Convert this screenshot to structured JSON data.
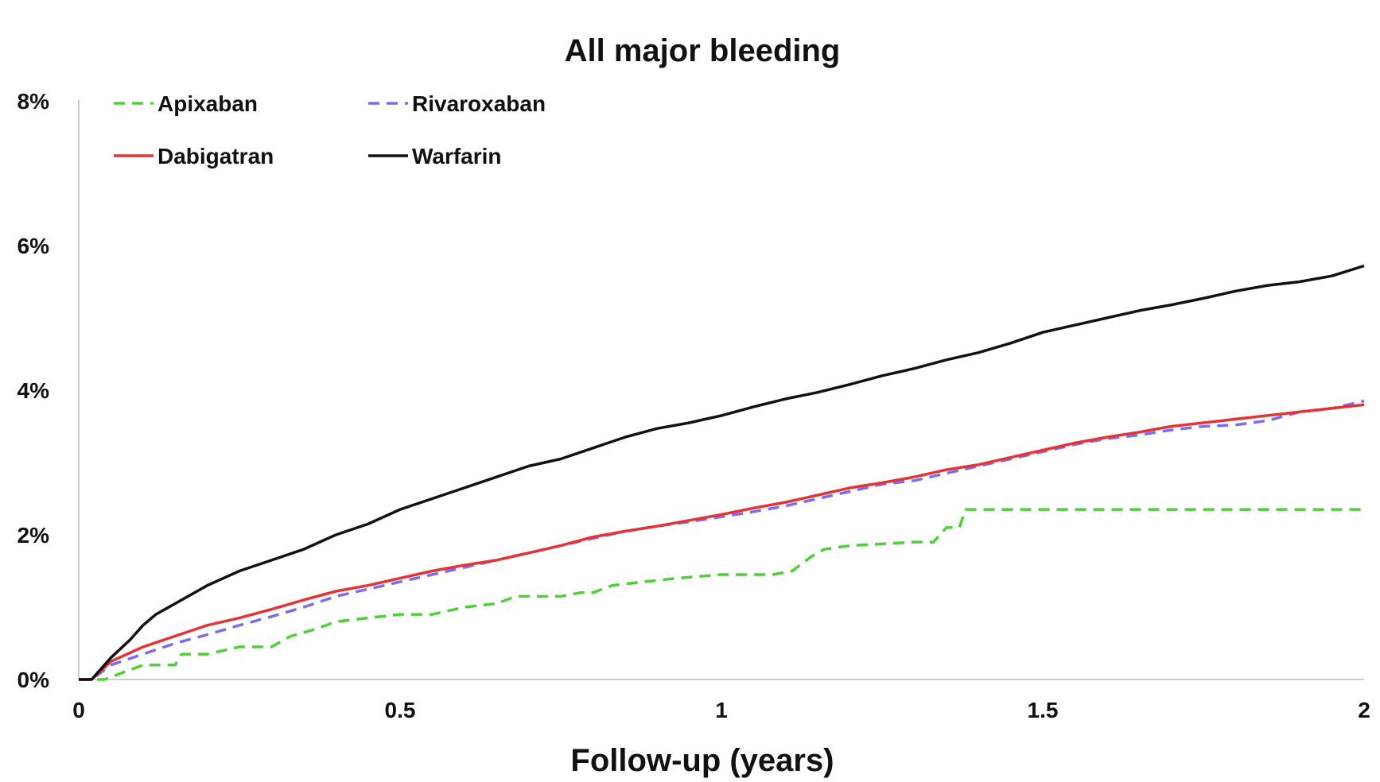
{
  "chart_data": {
    "type": "line",
    "title": "All major bleeding",
    "xlabel": "Follow-up (years)",
    "ylabel": "",
    "xlim": [
      0,
      2
    ],
    "ylim": [
      0,
      8
    ],
    "x_ticks": [
      {
        "value": 0,
        "label": "0"
      },
      {
        "value": 0.5,
        "label": "0.5"
      },
      {
        "value": 1,
        "label": "1"
      },
      {
        "value": 1.5,
        "label": "1.5"
      },
      {
        "value": 2,
        "label": "2"
      }
    ],
    "y_ticks": [
      {
        "value": 0,
        "label": "0%"
      },
      {
        "value": 2,
        "label": "2%"
      },
      {
        "value": 4,
        "label": "4%"
      },
      {
        "value": 6,
        "label": "6%"
      },
      {
        "value": 8,
        "label": "8%"
      }
    ],
    "grid": false,
    "legend_placement": "top-left",
    "series": [
      {
        "name": "Apixaban",
        "color": "#4cd137",
        "dash": "dashed",
        "points": [
          [
            0,
            0
          ],
          [
            0.04,
            0
          ],
          [
            0.07,
            0.1
          ],
          [
            0.1,
            0.2
          ],
          [
            0.15,
            0.2
          ],
          [
            0.16,
            0.35
          ],
          [
            0.2,
            0.35
          ],
          [
            0.25,
            0.45
          ],
          [
            0.3,
            0.45
          ],
          [
            0.33,
            0.6
          ],
          [
            0.37,
            0.7
          ],
          [
            0.4,
            0.8
          ],
          [
            0.45,
            0.85
          ],
          [
            0.5,
            0.9
          ],
          [
            0.55,
            0.9
          ],
          [
            0.6,
            1.0
          ],
          [
            0.65,
            1.05
          ],
          [
            0.68,
            1.15
          ],
          [
            0.75,
            1.15
          ],
          [
            0.78,
            1.2
          ],
          [
            0.8,
            1.2
          ],
          [
            0.83,
            1.3
          ],
          [
            0.88,
            1.35
          ],
          [
            0.93,
            1.4
          ],
          [
            1.0,
            1.45
          ],
          [
            1.08,
            1.45
          ],
          [
            1.11,
            1.5
          ],
          [
            1.14,
            1.7
          ],
          [
            1.16,
            1.8
          ],
          [
            1.2,
            1.85
          ],
          [
            1.3,
            1.9
          ],
          [
            1.33,
            1.9
          ],
          [
            1.35,
            2.1
          ],
          [
            1.37,
            2.1
          ],
          [
            1.38,
            2.35
          ],
          [
            2.0,
            2.35
          ]
        ]
      },
      {
        "name": "Rivaroxaban",
        "color": "#7b6cf0",
        "dash": "dashed",
        "points": [
          [
            0,
            0
          ],
          [
            0.02,
            0
          ],
          [
            0.05,
            0.2
          ],
          [
            0.1,
            0.35
          ],
          [
            0.15,
            0.5
          ],
          [
            0.2,
            0.62
          ],
          [
            0.25,
            0.75
          ],
          [
            0.3,
            0.87
          ],
          [
            0.35,
            1.0
          ],
          [
            0.4,
            1.15
          ],
          [
            0.45,
            1.25
          ],
          [
            0.5,
            1.35
          ],
          [
            0.55,
            1.45
          ],
          [
            0.6,
            1.55
          ],
          [
            0.65,
            1.65
          ],
          [
            0.7,
            1.75
          ],
          [
            0.75,
            1.85
          ],
          [
            0.8,
            1.95
          ],
          [
            0.85,
            2.05
          ],
          [
            0.9,
            2.12
          ],
          [
            0.95,
            2.18
          ],
          [
            1.0,
            2.25
          ],
          [
            1.05,
            2.32
          ],
          [
            1.1,
            2.4
          ],
          [
            1.15,
            2.5
          ],
          [
            1.2,
            2.6
          ],
          [
            1.25,
            2.7
          ],
          [
            1.3,
            2.75
          ],
          [
            1.35,
            2.85
          ],
          [
            1.4,
            2.95
          ],
          [
            1.45,
            3.05
          ],
          [
            1.5,
            3.15
          ],
          [
            1.55,
            3.25
          ],
          [
            1.6,
            3.33
          ],
          [
            1.65,
            3.38
          ],
          [
            1.7,
            3.45
          ],
          [
            1.75,
            3.5
          ],
          [
            1.8,
            3.52
          ],
          [
            1.85,
            3.58
          ],
          [
            1.9,
            3.7
          ],
          [
            1.95,
            3.75
          ],
          [
            2.0,
            3.85
          ]
        ]
      },
      {
        "name": "Dabigatran",
        "color": "#e63232",
        "dash": "solid",
        "points": [
          [
            0,
            0
          ],
          [
            0.02,
            0
          ],
          [
            0.05,
            0.25
          ],
          [
            0.1,
            0.45
          ],
          [
            0.15,
            0.6
          ],
          [
            0.2,
            0.75
          ],
          [
            0.25,
            0.85
          ],
          [
            0.3,
            0.97
          ],
          [
            0.35,
            1.1
          ],
          [
            0.4,
            1.22
          ],
          [
            0.45,
            1.3
          ],
          [
            0.5,
            1.4
          ],
          [
            0.55,
            1.5
          ],
          [
            0.6,
            1.58
          ],
          [
            0.65,
            1.65
          ],
          [
            0.7,
            1.75
          ],
          [
            0.75,
            1.85
          ],
          [
            0.8,
            1.97
          ],
          [
            0.85,
            2.05
          ],
          [
            0.9,
            2.12
          ],
          [
            0.95,
            2.2
          ],
          [
            1.0,
            2.28
          ],
          [
            1.05,
            2.37
          ],
          [
            1.1,
            2.45
          ],
          [
            1.15,
            2.55
          ],
          [
            1.2,
            2.65
          ],
          [
            1.25,
            2.72
          ],
          [
            1.3,
            2.8
          ],
          [
            1.35,
            2.9
          ],
          [
            1.4,
            2.97
          ],
          [
            1.45,
            3.07
          ],
          [
            1.5,
            3.17
          ],
          [
            1.55,
            3.27
          ],
          [
            1.6,
            3.35
          ],
          [
            1.65,
            3.42
          ],
          [
            1.7,
            3.5
          ],
          [
            1.75,
            3.55
          ],
          [
            1.8,
            3.6
          ],
          [
            1.85,
            3.65
          ],
          [
            1.9,
            3.7
          ],
          [
            1.95,
            3.75
          ],
          [
            2.0,
            3.8
          ]
        ]
      },
      {
        "name": "Warfarin",
        "color": "#111111",
        "dash": "solid",
        "points": [
          [
            0,
            0
          ],
          [
            0.02,
            0
          ],
          [
            0.05,
            0.3
          ],
          [
            0.08,
            0.55
          ],
          [
            0.1,
            0.75
          ],
          [
            0.12,
            0.9
          ],
          [
            0.15,
            1.05
          ],
          [
            0.2,
            1.3
          ],
          [
            0.25,
            1.5
          ],
          [
            0.3,
            1.65
          ],
          [
            0.35,
            1.8
          ],
          [
            0.4,
            2.0
          ],
          [
            0.45,
            2.15
          ],
          [
            0.5,
            2.35
          ],
          [
            0.55,
            2.5
          ],
          [
            0.6,
            2.65
          ],
          [
            0.65,
            2.8
          ],
          [
            0.7,
            2.95
          ],
          [
            0.75,
            3.05
          ],
          [
            0.8,
            3.2
          ],
          [
            0.85,
            3.35
          ],
          [
            0.9,
            3.47
          ],
          [
            0.95,
            3.55
          ],
          [
            1.0,
            3.65
          ],
          [
            1.05,
            3.77
          ],
          [
            1.1,
            3.88
          ],
          [
            1.15,
            3.97
          ],
          [
            1.2,
            4.08
          ],
          [
            1.25,
            4.2
          ],
          [
            1.3,
            4.3
          ],
          [
            1.35,
            4.42
          ],
          [
            1.4,
            4.52
          ],
          [
            1.45,
            4.65
          ],
          [
            1.5,
            4.8
          ],
          [
            1.55,
            4.9
          ],
          [
            1.6,
            5.0
          ],
          [
            1.65,
            5.1
          ],
          [
            1.7,
            5.18
          ],
          [
            1.75,
            5.27
          ],
          [
            1.8,
            5.37
          ],
          [
            1.85,
            5.45
          ],
          [
            1.9,
            5.5
          ],
          [
            1.95,
            5.58
          ],
          [
            2.0,
            5.72
          ]
        ]
      }
    ]
  }
}
